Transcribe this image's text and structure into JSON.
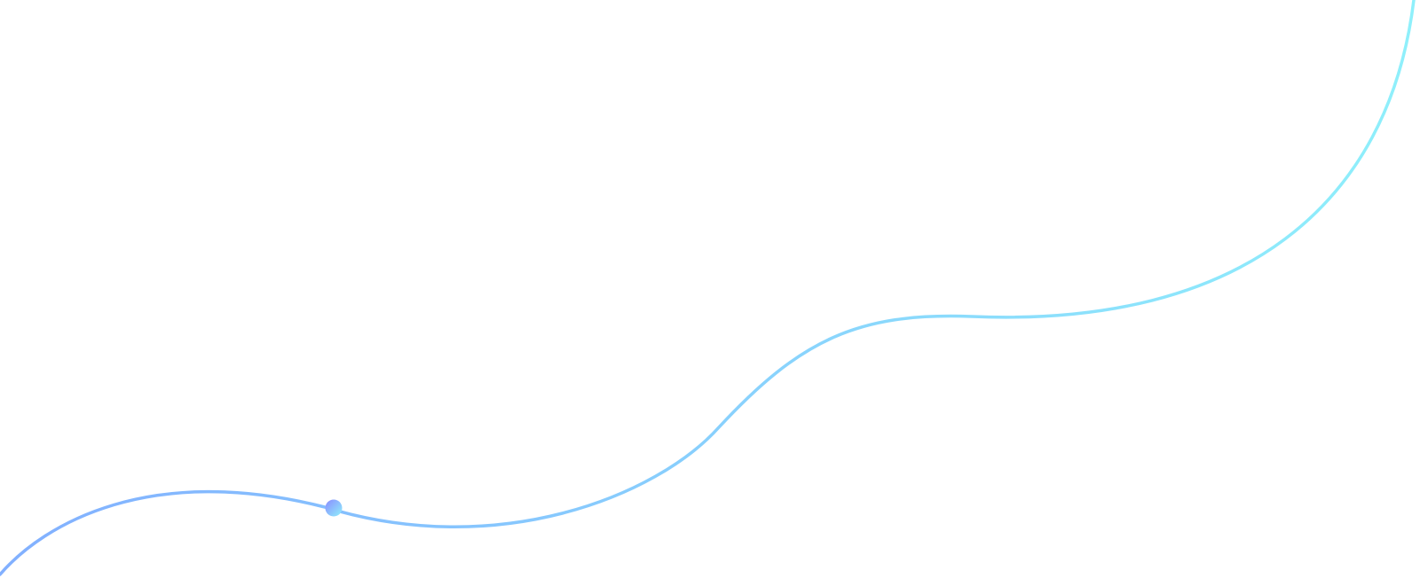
{
  "decoration": {
    "type": "wave-line",
    "colors": {
      "gradient_start": "#82b0ff",
      "gradient_end": "#8ff0fb",
      "dot_start": "#8a8cff",
      "dot_end": "#8ff0fb",
      "background": "#ffffff"
    }
  }
}
